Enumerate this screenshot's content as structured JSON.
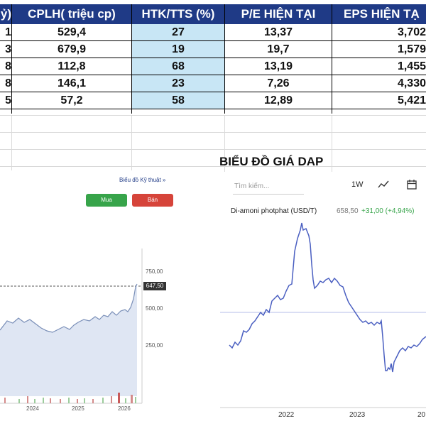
{
  "table": {
    "headers": [
      "ỷ)",
      "CPLH( triệu cp)",
      "HTK/TTS (%)",
      "P/E HIỆN TẠI",
      "EPS HIỆN TẠ"
    ],
    "rows": [
      [
        "1",
        "529,4",
        "27",
        "13,37",
        "3,702"
      ],
      [
        "3",
        "679,9",
        "19",
        "19,7",
        "1,579"
      ],
      [
        "8",
        "112,8",
        "68",
        "13,19",
        "1,455"
      ],
      [
        "8",
        "146,1",
        "23",
        "7,26",
        "4,330"
      ],
      [
        "5",
        "57,2",
        "58",
        "12,89",
        "5,421"
      ]
    ]
  },
  "left_chart": {
    "link_label": "Biểu đồ Kỹ thuật »",
    "buy_label": "Mua",
    "sell_label": "Bán",
    "price_tag": "647,50",
    "y_ticks": [
      "750,00",
      "500,00",
      "250,00"
    ],
    "x_ticks": [
      "2024",
      "2025",
      "2026"
    ],
    "colors": {
      "buy": "#37a44a",
      "sell": "#d6443a",
      "area": "#dfe6f3",
      "line": "#7a8fb8"
    }
  },
  "right_chart": {
    "title": "BIỂU ĐỒ GIÁ DAP",
    "search_placeholder": "Tìm kiếm...",
    "timeframe": "1W",
    "series_name": "Di-amoni photphat (USD/T)",
    "price": "658,50",
    "change": "+31,00 (+4,94%)",
    "x_ticks": [
      "2022",
      "2023",
      "20"
    ],
    "icons": [
      "line-chart-icon",
      "calendar-icon"
    ],
    "colors": {
      "line": "#4a5fc1",
      "change": "#37a44a"
    }
  }
}
